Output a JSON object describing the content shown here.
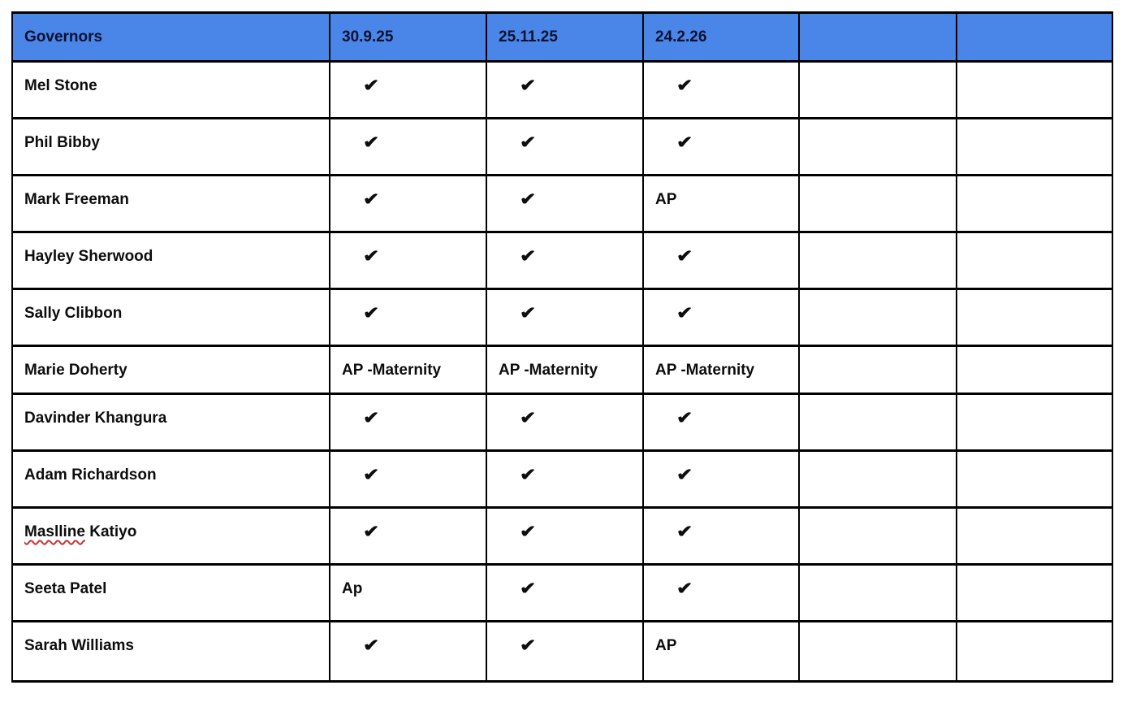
{
  "table": {
    "title_semantic": "Governors meeting attendance register",
    "check_symbol": "✔",
    "header": {
      "columns": [
        "Governors",
        "30.9.25",
        "25.11.25",
        "24.2.26",
        "",
        ""
      ]
    },
    "rows": [
      {
        "name": "Mel Stone",
        "cells": [
          "✔",
          "✔",
          "✔",
          "",
          ""
        ]
      },
      {
        "name": "Phil Bibby",
        "cells": [
          "✔",
          "✔",
          "✔",
          "",
          ""
        ]
      },
      {
        "name": "Mark Freeman",
        "cells": [
          "✔",
          "✔",
          "AP",
          "",
          ""
        ]
      },
      {
        "name": "Hayley Sherwood",
        "cells": [
          "✔",
          "✔",
          "✔",
          "",
          ""
        ]
      },
      {
        "name": "Sally Clibbon",
        "cells": [
          "✔",
          "✔",
          "✔",
          "",
          ""
        ]
      },
      {
        "name": "Marie Doherty",
        "cells": [
          "AP -Maternity",
          "AP -Maternity",
          "AP -Maternity",
          "",
          ""
        ]
      },
      {
        "name": "Davinder Khangura",
        "cells": [
          "✔",
          "✔",
          "✔",
          "",
          ""
        ]
      },
      {
        "name": "Adam Richardson",
        "cells": [
          "✔",
          "✔",
          "✔",
          "",
          ""
        ]
      },
      {
        "name": "Maslline Katiyo",
        "spellcheck_underline_word": "Maslline",
        "cells": [
          "✔",
          "✔",
          "✔",
          "",
          ""
        ]
      },
      {
        "name": "Seeta Patel",
        "cells": [
          "Ap",
          "✔",
          "✔",
          "",
          ""
        ]
      },
      {
        "name": "Sarah Williams",
        "cells": [
          "✔",
          "✔",
          "AP",
          "",
          ""
        ]
      }
    ],
    "colors": {
      "header_bg": "#4a86e8",
      "header_text": "#0b1130",
      "body_text": "#0d0d0d",
      "border": "#000000",
      "spellcheck_squiggle": "#cc3232"
    }
  }
}
